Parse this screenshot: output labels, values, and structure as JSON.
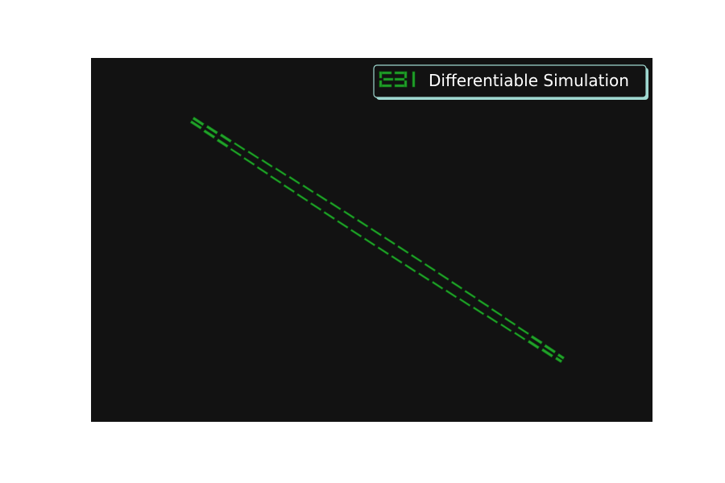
{
  "chart_data": {
    "type": "line",
    "title": "",
    "xlabel": "",
    "ylabel": "",
    "xlim": [
      0,
      1
    ],
    "ylim": [
      0,
      1
    ],
    "grid": false,
    "axes_visible": false,
    "background": "#121212",
    "legend": {
      "placement": "top-right"
    },
    "series": [
      {
        "name": "Differentiable Simulation",
        "color": "#22a02a",
        "edge_color": "#0b6b12",
        "linestyle": "dashed-ribbon",
        "x": [
          0.18,
          0.84
        ],
        "y": [
          0.83,
          0.17
        ]
      }
    ]
  },
  "colors": {
    "page": "#ffffff",
    "plot_area": "#121212",
    "legend_face": "#121212",
    "legend_edge": "#9fd8d0",
    "text": "#ffffff"
  }
}
